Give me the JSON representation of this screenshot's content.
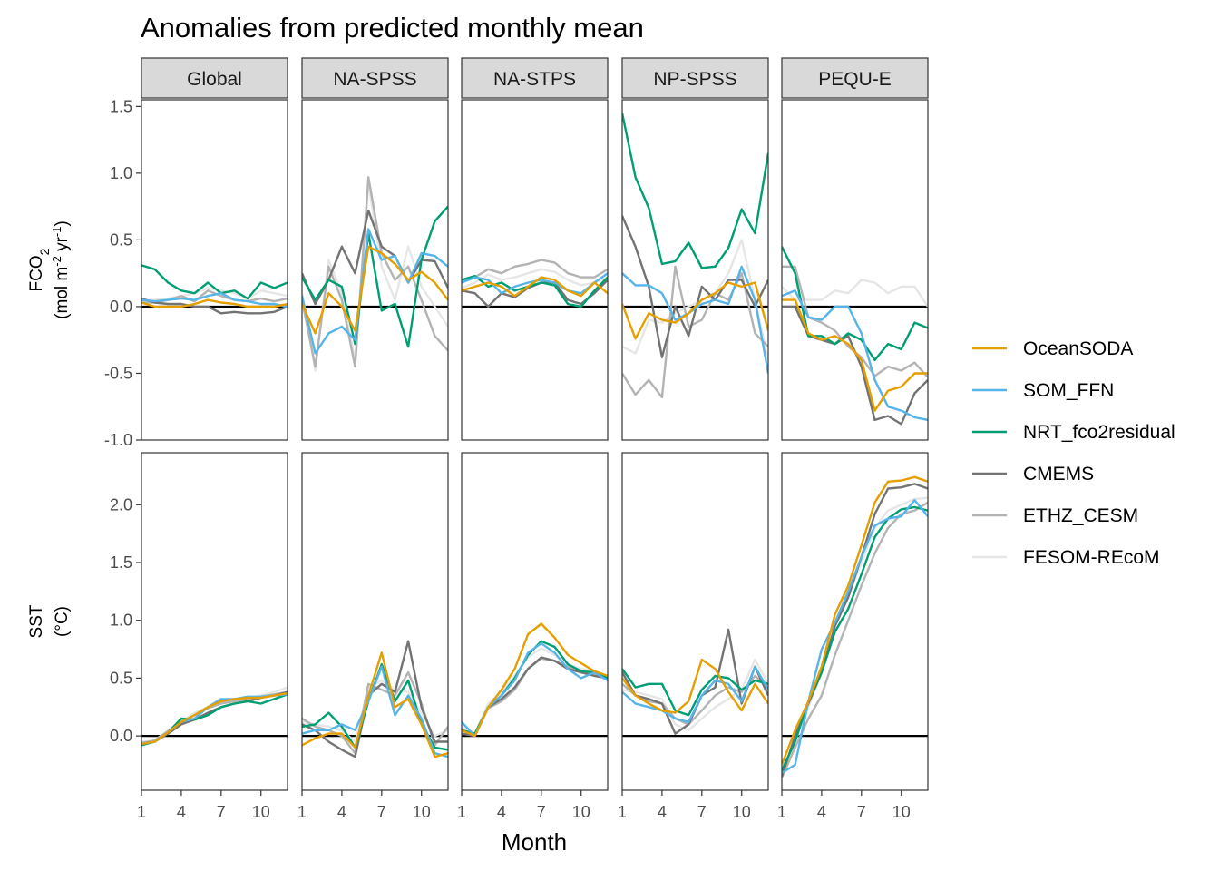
{
  "chart_data": {
    "type": "line",
    "title": "Anomalies from predicted monthly mean",
    "xlabel": "Month",
    "x": [
      1,
      2,
      3,
      4,
      5,
      6,
      7,
      8,
      9,
      10,
      11,
      12
    ],
    "x_ticks": [
      1,
      4,
      7,
      10
    ],
    "x_tick_labels": [
      "1",
      "4",
      "7",
      "10"
    ],
    "regions": [
      "Global",
      "NA-SPSS",
      "NA-STPS",
      "NP-SPSS",
      "PEQU-E"
    ],
    "rows": [
      {
        "id": "fco2",
        "ylabel_main": "FCO",
        "ylabel_sub": "2",
        "ylabel_units_parts": [
          "(mol m",
          "-2",
          " yr",
          "-1",
          ")"
        ],
        "ylim": [
          -1.0,
          1.55
        ],
        "y_ticks": [
          -1.0,
          -0.5,
          0.0,
          0.5,
          1.0,
          1.5
        ],
        "y_tick_labels": [
          "-1.0",
          "-0.5",
          "0.0",
          "0.5",
          "1.0",
          "1.5"
        ]
      },
      {
        "id": "sst",
        "ylabel_main": "SST",
        "ylabel_units": "(°C)",
        "ylim": [
          -0.47,
          2.45
        ],
        "y_ticks": [
          0.0,
          0.5,
          1.0,
          1.5,
          2.0
        ],
        "y_tick_labels": [
          "0.0",
          "0.5",
          "1.0",
          "1.5",
          "2.0"
        ]
      }
    ],
    "series_meta": [
      {
        "name": "OceanSODA",
        "color": "#E69F00"
      },
      {
        "name": "SOM_FFN",
        "color": "#56B4E9"
      },
      {
        "name": "NRT_fco2residual",
        "color": "#009E73"
      },
      {
        "name": "CMEMS",
        "color": "#737373"
      },
      {
        "name": "ETHZ_CESM",
        "color": "#b3b3b3"
      },
      {
        "name": "FESOM-REcoM",
        "color": "#e6e6e6"
      }
    ],
    "panels": {
      "fco2": {
        "Global": {
          "OceanSODA": [
            0.03,
            0.0,
            0.0,
            0.0,
            0.02,
            0.05,
            0.03,
            0.02,
            0.0,
            0.0,
            0.0,
            0.02
          ],
          "SOM_FFN": [
            0.05,
            0.04,
            0.05,
            0.06,
            0.05,
            0.08,
            0.1,
            0.05,
            0.04,
            0.02,
            0.02,
            0.0
          ],
          "NRT_fco2residual": [
            0.31,
            0.28,
            0.18,
            0.12,
            0.1,
            0.18,
            0.1,
            0.12,
            0.06,
            0.18,
            0.14,
            0.18
          ],
          "CMEMS": [
            0.06,
            0.03,
            0.02,
            0.02,
            0.0,
            0.0,
            -0.05,
            -0.04,
            -0.05,
            -0.05,
            -0.04,
            0.0
          ],
          "ETHZ_CESM": [
            0.03,
            0.03,
            0.05,
            0.08,
            0.04,
            0.12,
            0.08,
            0.05,
            0.04,
            0.06,
            0.04,
            0.06
          ],
          "FESOM-REcoM": [
            0.05,
            0.05,
            0.06,
            0.08,
            0.1,
            0.14,
            0.12,
            0.1,
            0.06,
            0.12,
            0.1,
            0.08
          ]
        },
        "NA-SPSS": {
          "OceanSODA": [
            0.02,
            -0.2,
            0.1,
            0.0,
            -0.18,
            0.45,
            0.4,
            0.32,
            0.2,
            0.26,
            0.18,
            0.05
          ],
          "SOM_FFN": [
            0.08,
            -0.35,
            -0.2,
            -0.15,
            -0.25,
            0.58,
            0.35,
            0.38,
            0.18,
            0.4,
            0.38,
            0.3
          ],
          "NRT_fco2residual": [
            0.22,
            0.05,
            0.2,
            0.15,
            -0.28,
            0.55,
            -0.03,
            0.02,
            -0.3,
            0.35,
            0.64,
            0.75
          ],
          "CMEMS": [
            0.25,
            0.02,
            0.2,
            0.45,
            0.25,
            0.72,
            0.45,
            0.38,
            0.18,
            0.35,
            0.34,
            0.14
          ],
          "ETHZ_CESM": [
            0.05,
            -0.45,
            0.3,
            0.05,
            -0.45,
            0.97,
            0.4,
            0.2,
            0.3,
            0.05,
            -0.22,
            -0.33
          ],
          "FESOM-REcoM": [
            0.1,
            -0.48,
            0.35,
            0.1,
            -0.4,
            0.92,
            0.3,
            0.05,
            0.45,
            0.15,
            0.0,
            -0.15
          ]
        },
        "NA-STPS": {
          "OceanSODA": [
            0.12,
            0.15,
            0.18,
            0.15,
            0.08,
            0.15,
            0.22,
            0.2,
            0.12,
            0.08,
            0.18,
            0.1
          ],
          "SOM_FFN": [
            0.18,
            0.22,
            0.2,
            0.1,
            0.15,
            0.18,
            0.2,
            0.18,
            0.12,
            0.1,
            0.18,
            0.25
          ],
          "NRT_fco2residual": [
            0.2,
            0.23,
            0.15,
            0.18,
            0.12,
            0.15,
            0.18,
            0.16,
            0.02,
            0.0,
            0.12,
            0.22
          ],
          "CMEMS": [
            0.12,
            0.1,
            0.0,
            0.1,
            0.07,
            0.14,
            0.18,
            0.18,
            0.05,
            0.02,
            0.1,
            0.2
          ],
          "ETHZ_CESM": [
            0.18,
            0.22,
            0.28,
            0.25,
            0.3,
            0.32,
            0.35,
            0.33,
            0.25,
            0.22,
            0.22,
            0.28
          ],
          "FESOM-REcoM": [
            0.14,
            0.18,
            0.24,
            0.2,
            0.22,
            0.25,
            0.28,
            0.26,
            0.2,
            0.16,
            0.18,
            0.22
          ]
        },
        "NP-SPSS": {
          "OceanSODA": [
            0.02,
            -0.24,
            -0.05,
            -0.1,
            -0.12,
            -0.05,
            0.05,
            0.1,
            0.18,
            0.15,
            0.18,
            -0.18
          ],
          "SOM_FFN": [
            0.25,
            0.16,
            0.16,
            0.1,
            -0.1,
            -0.05,
            0.02,
            0.05,
            0.02,
            0.3,
            0.05,
            -0.5
          ],
          "NRT_fco2residual": [
            1.45,
            0.97,
            0.74,
            0.32,
            0.34,
            0.48,
            0.29,
            0.3,
            0.44,
            0.73,
            0.55,
            1.15
          ],
          "CMEMS": [
            0.68,
            0.45,
            0.15,
            -0.38,
            0.0,
            -0.22,
            0.15,
            0.05,
            0.2,
            0.2,
            0.0,
            0.2
          ],
          "ETHZ_CESM": [
            -0.5,
            -0.66,
            -0.55,
            -0.68,
            0.3,
            -0.15,
            -0.1,
            0.1,
            0.05,
            0.25,
            -0.2,
            -0.3
          ],
          "FESOM-REcoM": [
            -0.3,
            -0.35,
            -0.1,
            -0.12,
            -0.05,
            0.0,
            0.05,
            0.1,
            0.25,
            0.5,
            0.05,
            -0.4
          ]
        },
        "PEQU-E": {
          "OceanSODA": [
            0.05,
            0.05,
            -0.2,
            -0.25,
            -0.22,
            -0.28,
            -0.4,
            -0.78,
            -0.63,
            -0.6,
            -0.5,
            -0.5
          ],
          "SOM_FFN": [
            0.08,
            0.12,
            -0.08,
            -0.1,
            0.0,
            0.0,
            -0.2,
            -0.55,
            -0.75,
            -0.78,
            -0.83,
            -0.85
          ],
          "NRT_fco2residual": [
            0.45,
            0.25,
            -0.22,
            -0.22,
            -0.28,
            -0.2,
            -0.25,
            -0.4,
            -0.28,
            -0.32,
            -0.12,
            -0.16
          ],
          "CMEMS": [
            0.0,
            0.0,
            -0.22,
            -0.25,
            -0.28,
            -0.22,
            -0.45,
            -0.85,
            -0.82,
            -0.88,
            -0.65,
            -0.55
          ],
          "ETHZ_CESM": [
            0.3,
            0.3,
            -0.08,
            -0.12,
            -0.18,
            -0.3,
            -0.38,
            -0.52,
            -0.45,
            -0.48,
            -0.42,
            -0.53
          ],
          "FESOM-REcoM": [
            0.15,
            0.05,
            0.05,
            0.05,
            0.12,
            0.1,
            0.2,
            0.18,
            0.1,
            0.15,
            0.15,
            0.0
          ]
        }
      },
      "sst": {
        "Global": {
          "OceanSODA": [
            -0.07,
            -0.05,
            0.03,
            0.12,
            0.18,
            0.25,
            0.3,
            0.32,
            0.33,
            0.33,
            0.35,
            0.37
          ],
          "SOM_FFN": [
            -0.07,
            -0.05,
            0.03,
            0.12,
            0.15,
            0.25,
            0.32,
            0.32,
            0.34,
            0.34,
            0.35,
            0.36
          ],
          "NRT_fco2residual": [
            -0.08,
            -0.05,
            0.03,
            0.15,
            0.14,
            0.18,
            0.25,
            0.28,
            0.3,
            0.28,
            0.32,
            0.36
          ],
          "CMEMS": [
            -0.07,
            -0.05,
            0.02,
            0.1,
            0.14,
            0.2,
            0.25,
            0.28,
            0.3,
            0.33,
            0.35,
            0.38
          ],
          "ETHZ_CESM": [
            -0.06,
            -0.04,
            0.04,
            0.12,
            0.18,
            0.24,
            0.28,
            0.3,
            0.32,
            0.34,
            0.36,
            0.38
          ],
          "FESOM-REcoM": [
            -0.05,
            -0.04,
            0.05,
            0.13,
            0.2,
            0.25,
            0.29,
            0.31,
            0.33,
            0.35,
            0.38,
            0.42
          ]
        },
        "NA-SPSS": {
          "OceanSODA": [
            -0.08,
            -0.02,
            0.02,
            0.02,
            -0.1,
            0.35,
            0.72,
            0.25,
            0.32,
            0.1,
            -0.18,
            -0.15
          ],
          "SOM_FFN": [
            0.02,
            0.05,
            0.05,
            0.1,
            0.05,
            0.3,
            0.6,
            0.18,
            0.35,
            0.15,
            -0.15,
            -0.18
          ],
          "NRT_fco2residual": [
            0.08,
            0.1,
            0.2,
            0.08,
            -0.1,
            0.3,
            0.62,
            0.3,
            0.48,
            0.1,
            -0.1,
            -0.12
          ],
          "CMEMS": [
            0.1,
            0.05,
            -0.05,
            -0.12,
            -0.18,
            0.35,
            0.45,
            0.38,
            0.82,
            0.25,
            -0.05,
            -0.05
          ],
          "ETHZ_CESM": [
            0.15,
            0.08,
            0.05,
            0.0,
            -0.15,
            0.45,
            0.4,
            0.35,
            0.55,
            0.28,
            -0.08,
            0.08
          ],
          "FESOM-REcoM": [
            0.12,
            0.1,
            0.08,
            0.05,
            -0.05,
            0.42,
            0.48,
            0.4,
            0.38,
            0.2,
            0.0,
            0.05
          ]
        },
        "NA-STPS": {
          "OceanSODA": [
            0.05,
            0.0,
            0.25,
            0.4,
            0.58,
            0.88,
            0.97,
            0.85,
            0.7,
            0.63,
            0.56,
            0.52
          ],
          "SOM_FFN": [
            0.12,
            0.0,
            0.25,
            0.35,
            0.48,
            0.72,
            0.8,
            0.72,
            0.58,
            0.5,
            0.55,
            0.48
          ],
          "NRT_fco2residual": [
            0.05,
            0.02,
            0.25,
            0.35,
            0.5,
            0.7,
            0.82,
            0.77,
            0.62,
            0.56,
            0.55,
            0.5
          ],
          "CMEMS": [
            0.02,
            0.0,
            0.25,
            0.32,
            0.42,
            0.58,
            0.68,
            0.65,
            0.58,
            0.55,
            0.52,
            0.5
          ],
          "ETHZ_CESM": [
            0.05,
            0.0,
            0.24,
            0.3,
            0.4,
            0.58,
            0.67,
            0.65,
            0.6,
            0.56,
            0.53,
            0.5
          ],
          "FESOM-REcoM": [
            0.08,
            0.02,
            0.28,
            0.38,
            0.52,
            0.68,
            0.76,
            0.7,
            0.62,
            0.58,
            0.56,
            0.52
          ]
        },
        "NP-SPSS": {
          "OceanSODA": [
            0.5,
            0.35,
            0.28,
            0.22,
            0.2,
            0.3,
            0.66,
            0.58,
            0.38,
            0.22,
            0.45,
            0.28
          ],
          "SOM_FFN": [
            0.38,
            0.28,
            0.25,
            0.22,
            0.15,
            0.12,
            0.35,
            0.48,
            0.45,
            0.3,
            0.6,
            0.4
          ],
          "NRT_fco2residual": [
            0.58,
            0.42,
            0.45,
            0.45,
            0.22,
            0.18,
            0.4,
            0.52,
            0.5,
            0.4,
            0.48,
            0.45
          ],
          "CMEMS": [
            0.55,
            0.35,
            0.32,
            0.28,
            0.02,
            0.1,
            0.35,
            0.42,
            0.92,
            0.28,
            0.6,
            0.35
          ],
          "ETHZ_CESM": [
            0.45,
            0.35,
            0.3,
            0.28,
            0.15,
            0.1,
            0.22,
            0.35,
            0.42,
            0.38,
            0.52,
            0.42
          ],
          "FESOM-REcoM": [
            0.4,
            0.38,
            0.35,
            0.32,
            0.1,
            0.05,
            0.15,
            0.25,
            0.32,
            0.4,
            0.66,
            0.45
          ]
        },
        "PEQU-E": {
          "OceanSODA": [
            -0.25,
            0.05,
            0.3,
            0.6,
            1.05,
            1.3,
            1.65,
            2.02,
            2.2,
            2.21,
            2.24,
            2.2
          ],
          "SOM_FFN": [
            -0.32,
            -0.25,
            0.3,
            0.75,
            0.98,
            1.25,
            1.55,
            1.82,
            1.88,
            1.9,
            2.04,
            1.9
          ],
          "NRT_fco2residual": [
            -0.3,
            -0.05,
            0.3,
            0.55,
            0.9,
            1.1,
            1.4,
            1.72,
            1.88,
            1.96,
            1.98,
            1.95
          ],
          "CMEMS": [
            -0.35,
            0.0,
            0.28,
            0.55,
            0.95,
            1.2,
            1.55,
            1.92,
            2.14,
            2.15,
            2.18,
            2.14
          ],
          "ETHZ_CESM": [
            -0.36,
            -0.1,
            0.15,
            0.35,
            0.7,
            1.0,
            1.3,
            1.58,
            1.8,
            1.92,
            1.95,
            2.02
          ],
          "FESOM-REcoM": [
            -0.3,
            -0.05,
            0.25,
            0.55,
            0.95,
            1.2,
            1.5,
            1.8,
            1.95,
            2.0,
            2.05,
            2.06
          ]
        }
      }
    }
  }
}
